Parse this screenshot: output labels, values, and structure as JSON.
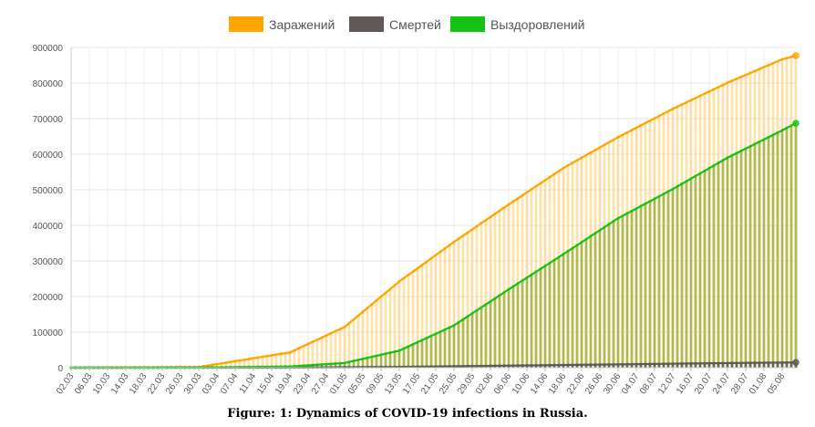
{
  "chart_data": {
    "type": "line",
    "series": [
      {
        "name": "Заражений",
        "color": "#FFA500",
        "x": [
          "02.03",
          "30.03",
          "19.04",
          "01.05",
          "13.05",
          "25.05",
          "06.06",
          "18.06",
          "30.06",
          "12.07",
          "24.07",
          "05.08",
          "08.08"
        ],
        "values": [
          3,
          1836,
          42853,
          114431,
          242271,
          353427,
          458689,
          561091,
          647849,
          727162,
          800849,
          866627,
          877135
        ]
      },
      {
        "name": "Смертей",
        "color": "#615959",
        "x": [
          "02.03",
          "19.04",
          "13.05",
          "06.06",
          "30.06",
          "24.07",
          "08.08"
        ],
        "values": [
          0,
          361,
          2212,
          5725,
          9320,
          13026,
          14725
        ]
      },
      {
        "name": "Выздоровлений",
        "color": "#16C216",
        "x": [
          "02.03",
          "30.03",
          "19.04",
          "01.05",
          "13.05",
          "25.05",
          "06.06",
          "18.06",
          "30.06",
          "12.07",
          "24.07",
          "05.08",
          "08.08"
        ],
        "values": [
          0,
          121,
          3291,
          13220,
          48003,
          118798,
          220000,
          319000,
          420000,
          502000,
          590000,
          667000,
          687000
        ]
      }
    ],
    "x_tick_labels": [
      "02.03",
      "06.03",
      "10.03",
      "14.03",
      "18.03",
      "22.03",
      "26.03",
      "30.03",
      "03.04",
      "07.04",
      "11.04",
      "15.04",
      "19.04",
      "23.04",
      "27.04",
      "01.05",
      "05.05",
      "09.05",
      "13.05",
      "17.05",
      "21.05",
      "25.05",
      "29.05",
      "02.06",
      "06.06",
      "10.06",
      "14.06",
      "18.06",
      "22.06",
      "26.06",
      "30.06",
      "04.07",
      "08.07",
      "12.07",
      "16.07",
      "20.07",
      "24.07",
      "28.07",
      "01.08",
      "05.08"
    ],
    "y_ticks": [
      "0",
      "100000",
      "200000",
      "300000",
      "400000",
      "500000",
      "600000",
      "700000",
      "800000",
      "900000"
    ],
    "ylim": [
      0,
      900000
    ],
    "grid": true,
    "legend": "top-center"
  },
  "caption": "Figure: 1: Dynamics of COVID-19 infections in Russia."
}
